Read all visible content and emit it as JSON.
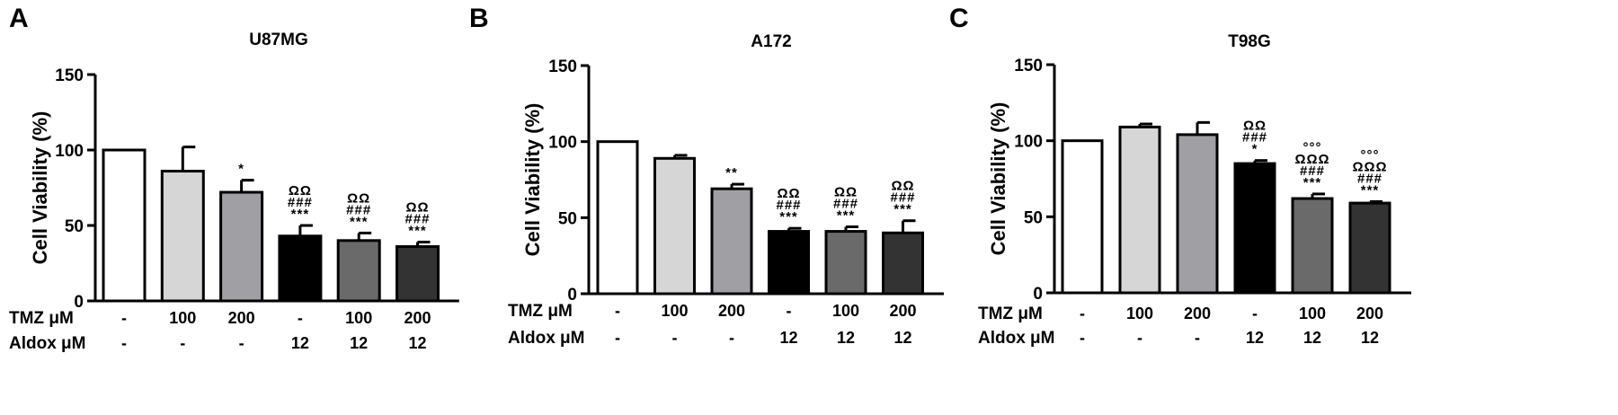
{
  "chart_data": [
    {
      "type": "bar",
      "panel": "A",
      "title": "U87MG",
      "ylabel": "Cell Viability (%)",
      "ylim": [
        0,
        150
      ],
      "yticks": [
        "0",
        "50",
        "100",
        "150"
      ],
      "values": [
        100,
        86,
        72,
        43,
        40,
        36
      ],
      "errors": [
        0,
        16,
        8,
        7,
        5,
        3
      ],
      "colors": [
        "#ffffff",
        "#d6d6d6",
        "#a0a0a4",
        "#000000",
        "#6a6a6a",
        "#333333"
      ],
      "annotations": [
        [],
        [],
        [
          "*"
        ],
        [
          "ΩΩ",
          "###",
          "***"
        ],
        [
          "ΩΩ",
          "###",
          "***"
        ],
        [
          "ΩΩ",
          "###",
          "***"
        ]
      ],
      "row_labels": [
        "TMZ μM",
        "Aldox μM"
      ],
      "rows": [
        [
          "-",
          "100",
          "200",
          "-",
          "100",
          "200"
        ],
        [
          "-",
          "-",
          "-",
          "12",
          "12",
          "12"
        ]
      ]
    },
    {
      "type": "bar",
      "panel": "B",
      "title": "A172",
      "ylabel": "Cell Viability (%)",
      "ylim": [
        0,
        150
      ],
      "yticks": [
        "0",
        "50",
        "100",
        "150"
      ],
      "values": [
        100,
        89,
        69,
        41,
        41,
        40
      ],
      "errors": [
        0,
        2,
        3,
        2,
        3,
        8
      ],
      "colors": [
        "#ffffff",
        "#d6d6d6",
        "#a0a0a4",
        "#000000",
        "#6a6a6a",
        "#333333"
      ],
      "annotations": [
        [],
        [],
        [
          "**"
        ],
        [
          "ΩΩ",
          "###",
          "***"
        ],
        [
          "ΩΩ",
          "###",
          "***"
        ],
        [
          "ΩΩ",
          "###",
          "***"
        ]
      ],
      "row_labels": [
        "TMZ μM",
        "Aldox μM"
      ],
      "rows": [
        [
          "-",
          "100",
          "200",
          "-",
          "100",
          "200"
        ],
        [
          "-",
          "-",
          "-",
          "12",
          "12",
          "12"
        ]
      ]
    },
    {
      "type": "bar",
      "panel": "C",
      "title": "T98G",
      "ylabel": "Cell Viability (%)",
      "ylim": [
        0,
        150
      ],
      "yticks": [
        "0",
        "50",
        "100",
        "150"
      ],
      "values": [
        100,
        109,
        104,
        85,
        62,
        59
      ],
      "errors": [
        0,
        2,
        8,
        2,
        3,
        1
      ],
      "colors": [
        "#ffffff",
        "#d6d6d6",
        "#a0a0a4",
        "#000000",
        "#6a6a6a",
        "#333333"
      ],
      "annotations": [
        [],
        [],
        [],
        [
          "ΩΩ",
          "###",
          "*"
        ],
        [
          "°°°",
          "ΩΩΩ",
          "###",
          "***"
        ],
        [
          "°°°",
          "ΩΩΩ",
          "###",
          "***"
        ]
      ],
      "row_labels": [
        "TMZ μM",
        "Aldox μM"
      ],
      "rows": [
        [
          "-",
          "100",
          "200",
          "-",
          "100",
          "200"
        ],
        [
          "-",
          "-",
          "-",
          "12",
          "12",
          "12"
        ]
      ]
    }
  ]
}
